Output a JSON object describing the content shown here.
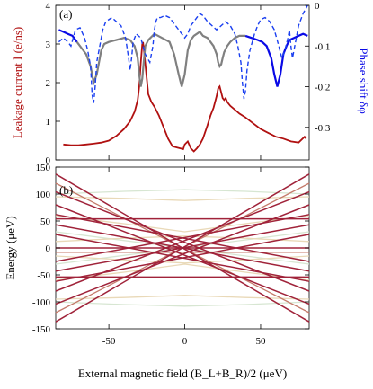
{
  "figure": {
    "xlabel": "External magnetic field (B_L+B_R)/2 (μeV)"
  },
  "chart_data": [
    {
      "panel_label": "(a)",
      "type": "line",
      "xlim": [
        -85,
        82
      ],
      "ylim": [
        0,
        4
      ],
      "y2lim": [
        -0.38,
        0.0
      ],
      "ylabel": "Leakage current I (e/ns)",
      "y2label": "Phase shift δφ",
      "yticks": [
        0,
        1,
        2,
        3,
        4
      ],
      "y2ticks": [
        0,
        -0.1,
        -0.2,
        -0.3
      ],
      "y2ticklabels": [
        "0",
        "-0.1",
        "-0.2",
        "-0.3"
      ],
      "colors": {
        "current": "#b01010",
        "phase_solid": "#0a0ae6",
        "phase_gray": "#808080",
        "phase_dashed": "#1a3ff0"
      },
      "series": [
        {
          "axis": "left",
          "style": "solid",
          "color": "#b01010",
          "x": [
            -80,
            -75,
            -70,
            -65,
            -60,
            -55,
            -50,
            -45,
            -40,
            -36,
            -33,
            -31,
            -30,
            -29,
            -28,
            -27.5,
            -27,
            -26,
            -25,
            -24,
            -22,
            -20,
            -17,
            -14,
            -11,
            -8,
            -5,
            -3,
            -1,
            0,
            2,
            4,
            6,
            8,
            10,
            12,
            15,
            17,
            19,
            20,
            21,
            22,
            23,
            24,
            25,
            26,
            27,
            28,
            30,
            33,
            36,
            40,
            45,
            50,
            55,
            60,
            65,
            70,
            75,
            79,
            80
          ],
          "y": [
            0.4,
            0.38,
            0.38,
            0.4,
            0.42,
            0.45,
            0.5,
            0.62,
            0.8,
            1.0,
            1.25,
            1.55,
            1.9,
            2.5,
            3.0,
            3.05,
            2.9,
            2.5,
            2.1,
            1.7,
            1.5,
            1.38,
            1.15,
            0.85,
            0.55,
            0.35,
            0.32,
            0.3,
            0.28,
            0.4,
            0.48,
            0.3,
            0.22,
            0.3,
            0.4,
            0.55,
            0.9,
            1.15,
            1.35,
            1.5,
            1.65,
            1.85,
            1.9,
            1.75,
            1.6,
            1.55,
            1.6,
            1.5,
            1.4,
            1.3,
            1.2,
            1.1,
            0.95,
            0.8,
            0.7,
            0.6,
            0.55,
            0.48,
            0.45,
            0.6,
            0.55
          ]
        },
        {
          "axis": "right",
          "style": "solid-phase",
          "color": "#0a0ae6",
          "x": [
            -83,
            -80,
            -77,
            -74,
            -71,
            -68,
            -65,
            -62,
            -60,
            -58,
            -55,
            -53,
            -50,
            -45,
            -40,
            -36,
            -33,
            -31,
            -30,
            -29,
            -28,
            -27,
            -26,
            -24,
            -20,
            -15,
            -10,
            -7,
            -4,
            -2,
            0,
            2,
            4,
            6,
            8,
            10,
            12,
            15,
            17,
            19,
            21,
            22,
            23,
            24,
            25,
            26,
            28,
            30,
            33,
            36,
            40,
            44,
            48,
            51,
            54,
            57,
            59,
            61,
            63,
            65,
            67,
            69,
            72,
            75,
            78,
            81
          ],
          "y": [
            -0.06,
            -0.065,
            -0.07,
            -0.075,
            -0.09,
            -0.105,
            -0.12,
            -0.15,
            -0.19,
            -0.17,
            -0.11,
            -0.095,
            -0.09,
            -0.085,
            -0.08,
            -0.085,
            -0.1,
            -0.13,
            -0.17,
            -0.2,
            -0.18,
            -0.14,
            -0.1,
            -0.085,
            -0.07,
            -0.08,
            -0.09,
            -0.12,
            -0.17,
            -0.2,
            -0.17,
            -0.11,
            -0.085,
            -0.075,
            -0.07,
            -0.065,
            -0.075,
            -0.08,
            -0.09,
            -0.1,
            -0.12,
            -0.14,
            -0.15,
            -0.145,
            -0.13,
            -0.115,
            -0.1,
            -0.09,
            -0.08,
            -0.075,
            -0.075,
            -0.08,
            -0.085,
            -0.09,
            -0.1,
            -0.13,
            -0.17,
            -0.2,
            -0.17,
            -0.12,
            -0.1,
            -0.085,
            -0.08,
            -0.075,
            -0.07,
            -0.075
          ]
        },
        {
          "axis": "right",
          "style": "dashed",
          "color": "#1a3ff0",
          "x": [
            -83,
            -80,
            -77,
            -75,
            -72,
            -69,
            -66,
            -64,
            -62,
            -61,
            -60,
            -59,
            -58,
            -56,
            -54,
            -52,
            -48,
            -45,
            -42,
            -39,
            -37,
            -36,
            -35,
            -34,
            -32,
            -29,
            -26,
            -23,
            -21,
            -20,
            -19,
            -18,
            -16,
            -13,
            -10,
            -7,
            -4,
            -2,
            0,
            2,
            4,
            6,
            8,
            10,
            12,
            15,
            18,
            21,
            24,
            27,
            30,
            33,
            35,
            37,
            38,
            39,
            40,
            41,
            43,
            46,
            48,
            50,
            53,
            56,
            59,
            62,
            64,
            66,
            68,
            69,
            70,
            71,
            73,
            75,
            78,
            81
          ],
          "y": [
            -0.09,
            -0.08,
            -0.09,
            -0.1,
            -0.06,
            -0.055,
            -0.08,
            -0.11,
            -0.15,
            -0.22,
            -0.24,
            -0.2,
            -0.14,
            -0.1,
            -0.06,
            -0.04,
            -0.03,
            -0.04,
            -0.05,
            -0.08,
            -0.13,
            -0.16,
            -0.13,
            -0.09,
            -0.07,
            -0.08,
            -0.12,
            -0.14,
            -0.1,
            -0.06,
            -0.04,
            -0.03,
            -0.03,
            -0.025,
            -0.03,
            -0.045,
            -0.06,
            -0.07,
            -0.08,
            -0.07,
            -0.05,
            -0.04,
            -0.03,
            -0.02,
            -0.025,
            -0.04,
            -0.05,
            -0.06,
            -0.05,
            -0.04,
            -0.05,
            -0.07,
            -0.1,
            -0.14,
            -0.19,
            -0.23,
            -0.21,
            -0.16,
            -0.11,
            -0.07,
            -0.05,
            -0.035,
            -0.03,
            -0.04,
            -0.06,
            -0.1,
            -0.13,
            -0.11,
            -0.08,
            -0.06,
            -0.1,
            -0.13,
            -0.09,
            -0.05,
            -0.02,
            0.0
          ]
        }
      ]
    },
    {
      "panel_label": "(b)",
      "type": "line",
      "xlim": [
        -85,
        82
      ],
      "ylim": [
        -150,
        150
      ],
      "ylabel": "Energy (μeV)",
      "xticks": [
        -50,
        0,
        50
      ],
      "yticks": [
        -150,
        -100,
        -50,
        0,
        50,
        100,
        150
      ],
      "colors": {
        "dark": "#a0233a",
        "mid": "#c47a6a",
        "light": "#e9d9b8",
        "faint": "#d7e6d2"
      },
      "series": [
        {
          "x": [
            -85,
            82
          ],
          "y": [
            -137,
            137
          ],
          "tone": "dark"
        },
        {
          "x": [
            -85,
            82
          ],
          "y": [
            137,
            -137
          ],
          "tone": "dark"
        },
        {
          "x": [
            -85,
            82
          ],
          "y": [
            -104,
            80
          ],
          "tone": "dark"
        },
        {
          "x": [
            -85,
            82
          ],
          "y": [
            80,
            -104
          ],
          "tone": "dark"
        },
        {
          "x": [
            -85,
            82
          ],
          "y": [
            -80,
            104
          ],
          "tone": "dark"
        },
        {
          "x": [
            -85,
            82
          ],
          "y": [
            104,
            -80
          ],
          "tone": "dark"
        },
        {
          "x": [
            -85,
            82
          ],
          "y": [
            -43,
            43
          ],
          "tone": "dark"
        },
        {
          "x": [
            -85,
            82
          ],
          "y": [
            43,
            -43
          ],
          "tone": "dark"
        },
        {
          "x": [
            -85,
            82
          ],
          "y": [
            -25,
            62
          ],
          "tone": "dark"
        },
        {
          "x": [
            -85,
            82
          ],
          "y": [
            62,
            -25
          ],
          "tone": "dark"
        },
        {
          "x": [
            -85,
            82
          ],
          "y": [
            -62,
            25
          ],
          "tone": "dark"
        },
        {
          "x": [
            -85,
            82
          ],
          "y": [
            25,
            -62
          ],
          "tone": "dark"
        },
        {
          "x": [
            -85,
            82
          ],
          "y": [
            -54,
            -54
          ],
          "tone": "dark"
        },
        {
          "x": [
            -85,
            82
          ],
          "y": [
            0,
            0
          ],
          "tone": "dark"
        },
        {
          "x": [
            -85,
            82
          ],
          "y": [
            54,
            54
          ],
          "tone": "dark"
        },
        {
          "x": [
            -85,
            82
          ],
          "y": [
            -120,
            120
          ],
          "tone": "mid"
        },
        {
          "x": [
            -85,
            82
          ],
          "y": [
            120,
            -120
          ],
          "tone": "mid"
        },
        {
          "x": [
            -85,
            82
          ],
          "y": [
            -8,
            -8
          ],
          "tone": "mid"
        },
        {
          "x": [
            -85,
            -40,
            0,
            40,
            82
          ],
          "y": [
            95,
            92,
            88,
            92,
            95
          ],
          "tone": "light"
        },
        {
          "x": [
            -85,
            -40,
            0,
            40,
            82
          ],
          "y": [
            -95,
            -92,
            -88,
            -92,
            -95
          ],
          "tone": "light"
        },
        {
          "x": [
            -85,
            -40,
            0,
            40,
            82
          ],
          "y": [
            -60,
            -45,
            -30,
            -45,
            -60
          ],
          "tone": "light"
        },
        {
          "x": [
            -85,
            -40,
            0,
            40,
            82
          ],
          "y": [
            60,
            45,
            30,
            45,
            60
          ],
          "tone": "light"
        },
        {
          "x": [
            -85,
            -40,
            0,
            40,
            82
          ],
          "y": [
            12,
            18,
            22,
            18,
            12
          ],
          "tone": "light"
        },
        {
          "x": [
            -85,
            -40,
            0,
            40,
            82
          ],
          "y": [
            -15,
            -22,
            -28,
            -22,
            -15
          ],
          "tone": "light"
        },
        {
          "x": [
            -85,
            82
          ],
          "y": [
            -30,
            30
          ],
          "tone": "faint"
        },
        {
          "x": [
            -85,
            82
          ],
          "y": [
            30,
            -30
          ],
          "tone": "faint"
        },
        {
          "x": [
            -85,
            -40,
            0,
            40,
            82
          ],
          "y": [
            100,
            105,
            108,
            105,
            100
          ],
          "tone": "faint"
        },
        {
          "x": [
            -85,
            -40,
            0,
            40,
            82
          ],
          "y": [
            -100,
            -105,
            -108,
            -105,
            -100
          ],
          "tone": "faint"
        }
      ]
    }
  ]
}
